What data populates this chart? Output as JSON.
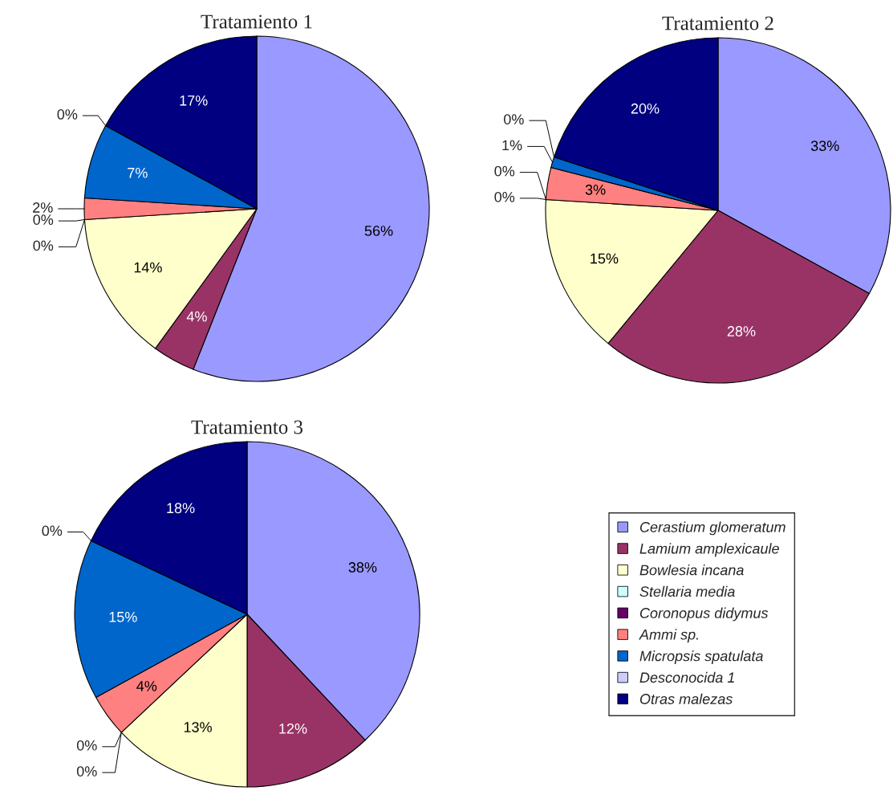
{
  "chart_data": [
    {
      "type": "pie",
      "title": "Tratamiento 1",
      "categories": [
        "Cerastium glomeratum",
        "Lamium amplexicaule",
        "Bowlesia incana",
        "Stellaria media",
        "Coronopus didymus",
        "Ammi sp.",
        "Micropsis spatulata",
        "Desconocida 1",
        "Otras malezas"
      ],
      "legend": "bottom right",
      "values": [
        56,
        4,
        14,
        0,
        0,
        2,
        7,
        0,
        17
      ],
      "value_labels": [
        "56%",
        "4%",
        "14%",
        "0%",
        "0%",
        "2%",
        "7%",
        "0%",
        "17%"
      ],
      "colors": [
        "#9999ff",
        "#993366",
        "#ffffcc",
        "#ccffff",
        "#660066",
        "#ff8080",
        "#0066cc",
        "#ccccff",
        "#000080"
      ]
    },
    {
      "type": "pie",
      "title": "Tratamiento 2",
      "categories": [
        null,
        null,
        null,
        null,
        null,
        null,
        null,
        null,
        null
      ],
      "values": [
        33,
        28,
        15,
        0,
        0,
        3,
        1,
        0,
        20
      ],
      "value_labels": [
        "33%",
        "28%",
        "15%",
        "0%",
        "0%",
        "3%",
        "1%",
        "0%",
        "20%"
      ],
      "colors": [
        "#9999ff",
        "#993366",
        "#ffffcc",
        "#ccffff",
        "#660066",
        "#ff8080",
        "#0066cc",
        "#ccccff",
        "#000080"
      ]
    },
    {
      "type": "pie",
      "title": "Tratamiento 3",
      "categories": [
        null,
        null,
        null,
        null,
        null,
        null,
        null,
        null,
        null
      ],
      "values": [
        38,
        12,
        13,
        0,
        0,
        4,
        15,
        0,
        18
      ],
      "value_labels": [
        "38%",
        "12%",
        "13%",
        "0%",
        "0%",
        "4%",
        "15%",
        "0%",
        "18%"
      ],
      "colors": [
        "#9999ff",
        "#993366",
        "#ffffcc",
        "#ccffff",
        "#660066",
        "#ff8080",
        "#0066cc",
        "#ccccff",
        "#000080"
      ]
    }
  ]
}
